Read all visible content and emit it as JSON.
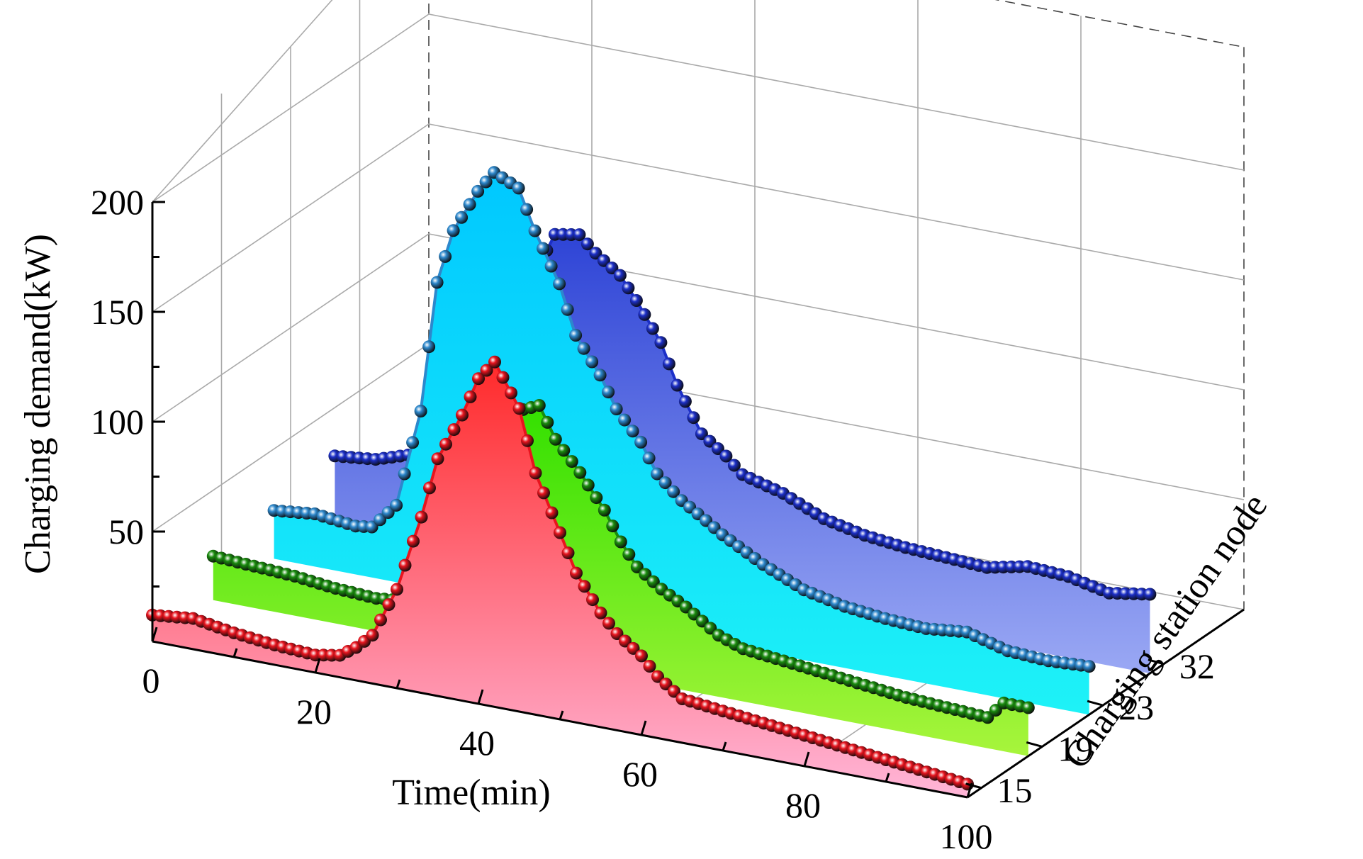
{
  "chart_data": {
    "type": "area",
    "subtype": "3d-waterfall",
    "title": "",
    "xlabel": "Time(min)",
    "ylabel": "Charging station node",
    "zlabel": "Charging demand(kW)",
    "xlim": [
      0,
      100
    ],
    "zlim": [
      0,
      200
    ],
    "x_ticks": [
      0,
      20,
      40,
      60,
      80,
      100
    ],
    "z_ticks": [
      50,
      100,
      150,
      200
    ],
    "y_categories": [
      "15",
      "19",
      "23",
      "32"
    ],
    "grid": true,
    "series": [
      {
        "name": "15",
        "color": "#e8141e",
        "fill_top": "#ff2a2a",
        "fill_bottom": "#ffb6d8",
        "x": [
          0,
          5,
          10,
          15,
          20,
          23,
          25,
          27,
          30,
          33,
          35,
          38,
          40,
          42,
          45,
          47,
          50,
          52,
          55,
          57,
          60,
          62,
          65,
          70,
          75,
          80,
          85,
          90,
          95,
          100
        ],
        "values": [
          12,
          14,
          11,
          9,
          8,
          10,
          15,
          22,
          45,
          80,
          108,
          130,
          148,
          157,
          138,
          110,
          85,
          68,
          52,
          44,
          36,
          28,
          20,
          18,
          16,
          14,
          12,
          10,
          8,
          6
        ]
      },
      {
        "name": "19",
        "color": "#1a8c0e",
        "fill_top": "#33e000",
        "fill_bottom": "#a8f53c",
        "x": [
          0,
          5,
          10,
          15,
          20,
          25,
          30,
          32,
          35,
          37,
          40,
          42,
          45,
          48,
          50,
          52,
          55,
          58,
          60,
          62,
          65,
          70,
          75,
          80,
          85,
          90,
          95,
          97,
          100
        ],
        "values": [
          20,
          19,
          18,
          16,
          15,
          17,
          32,
          65,
          95,
          112,
          117,
          103,
          90,
          75,
          62,
          52,
          44,
          38,
          33,
          28,
          24,
          22,
          20,
          18,
          16,
          15,
          14,
          22,
          22
        ]
      },
      {
        "name": "23",
        "color": "#2d88cc",
        "fill_top": "#00c8ff",
        "fill_bottom": "#1ef2f7",
        "x": [
          0,
          5,
          10,
          12,
          15,
          18,
          20,
          22,
          25,
          27,
          30,
          32,
          35,
          37,
          40,
          42,
          45,
          47,
          50,
          53,
          55,
          60,
          65,
          70,
          75,
          80,
          85,
          90,
          95,
          100
        ],
        "values": [
          22,
          24,
          22,
          23,
          35,
          80,
          140,
          165,
          185,
          195,
          190,
          172,
          150,
          128,
          112,
          98,
          85,
          72,
          62,
          55,
          50,
          40,
          32,
          28,
          26,
          25,
          27,
          22,
          21,
          22
        ]
      },
      {
        "name": "32",
        "color": "#1c2fc8",
        "fill_top": "#2e44d6",
        "fill_bottom": "#9aa8f4",
        "x": [
          0,
          5,
          10,
          15,
          20,
          22,
          25,
          27,
          30,
          32,
          35,
          37,
          40,
          42,
          45,
          48,
          50,
          55,
          60,
          65,
          70,
          75,
          80,
          85,
          90,
          95,
          100
        ],
        "values": [
          28,
          30,
          36,
          52,
          85,
          110,
          132,
          148,
          150,
          143,
          135,
          125,
          108,
          90,
          70,
          62,
          55,
          50,
          42,
          38,
          36,
          35,
          34,
          38,
          37,
          33,
          36
        ]
      }
    ]
  }
}
